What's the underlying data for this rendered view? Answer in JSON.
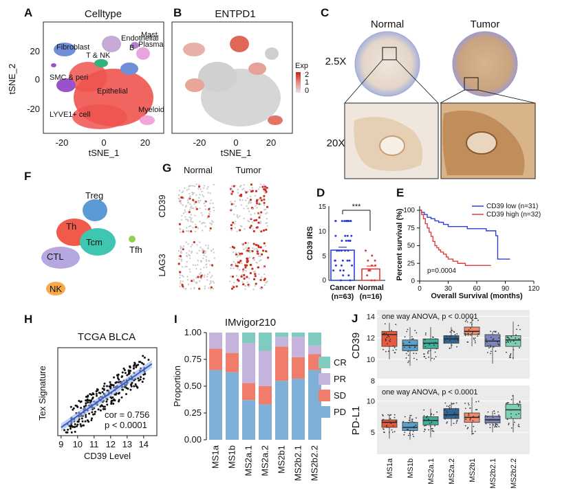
{
  "figure": {
    "panel_letters": {
      "A": "A",
      "B": "B",
      "C": "C",
      "F": "F",
      "G": "G",
      "D": "D",
      "E": "E",
      "H": "H",
      "I": "I",
      "J": "J"
    }
  },
  "panelA": {
    "title": "Celltype",
    "xlabel": "tSNE_1",
    "ylabel": "tSNE_2",
    "xticks": [
      "-20",
      "0",
      "20"
    ],
    "yticks": [
      "20",
      "0",
      "-20"
    ],
    "clusters": [
      {
        "label": "Endothelial",
        "color": "#c7a9d6"
      },
      {
        "label": "Mast",
        "color": "#c9c0ee"
      },
      {
        "label": "Fibroblast",
        "color": "#6f8fd8"
      },
      {
        "label": "B",
        "color": "#b37fd0"
      },
      {
        "label": "Plasma",
        "color": "#e7a4e0"
      },
      {
        "label": "T & NK",
        "color": "#34b27d"
      },
      {
        "label": "SMC & peri",
        "color": "#9a52c8"
      },
      {
        "label": "Epithelial",
        "color": "#f0544f"
      },
      {
        "label": "Myeloid",
        "color": "#f2a7d8"
      },
      {
        "label": "LYVE1+ cell",
        "color": "#9a52c8"
      }
    ]
  },
  "panelB": {
    "title": "ENTPD1",
    "xlabel": "tSNE_1",
    "xticks": [
      "-20",
      "0",
      "20"
    ],
    "legend_title": "Exp",
    "legend_values": [
      "2",
      "1",
      "0"
    ]
  },
  "panelC": {
    "col_labels": [
      "Normal",
      "Tumor"
    ],
    "row_labels": [
      "2.5X",
      "20X"
    ]
  },
  "panelF": {
    "clusters": [
      {
        "label": "Treg",
        "color": "#5b9bd5"
      },
      {
        "label": "Th",
        "color": "#f05a4a"
      },
      {
        "label": "Tcm",
        "color": "#3ec6b0"
      },
      {
        "label": "Tfh",
        "color": "#8fd14f"
      },
      {
        "label": "CTL",
        "color": "#b7a7e0"
      },
      {
        "label": "NK",
        "color": "#f7a94b"
      }
    ]
  },
  "panelG": {
    "col_labels": [
      "Normal",
      "Tumor"
    ],
    "row_labels": [
      "CD39",
      "LAG3"
    ]
  },
  "panelD": {
    "ylabel": "CD39 IRS",
    "yticks": [
      "15",
      "10",
      "5",
      "0"
    ],
    "groups": [
      "Cancer",
      "Normal"
    ],
    "group_n": [
      "(n=63)",
      "(n=16)"
    ],
    "sig": "***"
  },
  "panelE": {
    "ylabel": "Percent survival (%)",
    "xlabel": "Overall Survival (months)",
    "xticks": [
      "0",
      "30",
      "60",
      "90",
      "120"
    ],
    "yticks": [
      "100",
      "75",
      "50",
      "25",
      "0"
    ],
    "legend": [
      {
        "label": "CD39 low (n=31)",
        "color": "#2b3fd6"
      },
      {
        "label": "CD39 high (n=32)",
        "color": "#e23a3a"
      }
    ],
    "pvalue": "p=0.0004"
  },
  "panelH": {
    "title": "TCGA BLCA",
    "xlabel": "CD39 Level",
    "ylabel": "Tex Signature",
    "xticks": [
      "9",
      "10",
      "11",
      "12",
      "13",
      "14"
    ],
    "stat1": "cor = 0.756",
    "stat2": "p < 0.0001"
  },
  "panelI": {
    "title": "IMvigor210",
    "ylabel": "Proportion",
    "yticks": [
      "1.00",
      "0.75",
      "0.50",
      "0.25",
      "0.00"
    ],
    "legend": [
      {
        "label": "CR",
        "color": "#7fcbbf"
      },
      {
        "label": "PR",
        "color": "#c4b4dc"
      },
      {
        "label": "SD",
        "color": "#f07c6c"
      },
      {
        "label": "PD",
        "color": "#7fb1d8"
      }
    ]
  },
  "panelJ": {
    "top_ylabel": "CD39",
    "bottom_ylabel": "PD-L1",
    "annot": "one way ANOVA, p < 0.0001",
    "top_yticks": [
      "14",
      "12",
      "10",
      "8"
    ],
    "bottom_yticks": [
      "10",
      "5"
    ],
    "categories": [
      "MS1a",
      "MS1b",
      "MS2a.1",
      "MS2a.2",
      "MS2b1",
      "MS2b2.1",
      "MS2b2.2"
    ],
    "colors": [
      "#e8593c",
      "#5aa0c8",
      "#3fae9a",
      "#2f6597",
      "#f08a6a",
      "#7b86b8",
      "#7ccfb5"
    ]
  },
  "chart_data": [
    {
      "type": "bar",
      "panel": "D",
      "categories": [
        "Cancer",
        "Normal"
      ],
      "values": [
        6.1,
        2.3
      ],
      "ylabel": "CD39 IRS",
      "ylim": [
        0,
        15
      ]
    },
    {
      "type": "line",
      "panel": "E",
      "title": "",
      "xlabel": "Overall Survival (months)",
      "ylabel": "Percent survival (%)",
      "xlim": [
        0,
        120
      ],
      "ylim": [
        0,
        100
      ],
      "series": [
        {
          "name": "CD39 low (n=31)",
          "x": [
            0,
            2,
            5,
            8,
            12,
            16,
            20,
            25,
            30,
            40,
            50,
            60,
            70,
            80,
            82,
            95
          ],
          "y": [
            100,
            97,
            94,
            90,
            88,
            85,
            83,
            80,
            77,
            77,
            74,
            74,
            71,
            64,
            31,
            31
          ]
        },
        {
          "name": "CD39 high (n=32)",
          "x": [
            0,
            2,
            4,
            6,
            8,
            10,
            12,
            14,
            16,
            18,
            20,
            22,
            25,
            28,
            30,
            35,
            40,
            48,
            55,
            60,
            75
          ],
          "y": [
            100,
            94,
            88,
            81,
            75,
            69,
            63,
            56,
            50,
            47,
            44,
            41,
            38,
            34,
            31,
            28,
            25,
            22,
            22,
            22,
            22
          ]
        }
      ]
    },
    {
      "type": "scatter",
      "panel": "H",
      "title": "TCGA BLCA",
      "xlabel": "CD39 Level",
      "ylabel": "Tex Signature",
      "xlim": [
        8.8,
        14.8
      ],
      "ylim": [
        3.5,
        11.5
      ],
      "fit": {
        "slope": 1.05,
        "intercept": -5.2
      },
      "x": [
        9.2,
        9.5,
        9.8,
        10.0,
        10.1,
        10.2,
        10.3,
        10.4,
        10.5,
        10.6,
        10.7,
        10.8,
        10.9,
        11.0,
        11.0,
        11.1,
        11.2,
        11.3,
        11.4,
        11.5,
        11.5,
        11.6,
        11.7,
        11.8,
        11.9,
        12.0,
        12.0,
        12.1,
        12.2,
        12.3,
        12.4,
        12.5,
        12.6,
        12.7,
        12.8,
        12.9,
        13.0,
        13.1,
        13.2,
        13.4,
        13.6,
        13.8,
        14.0,
        14.3,
        10.0,
        10.6,
        11.2,
        11.8,
        12.4,
        13.0,
        11.4,
        12.2,
        10.8,
        12.8,
        11.6
      ],
      "y": [
        4.0,
        4.4,
        4.8,
        4.5,
        5.0,
        5.3,
        4.8,
        5.6,
        5.2,
        5.8,
        5.5,
        6.2,
        5.9,
        6.0,
        6.6,
        6.4,
        6.3,
        6.9,
        6.7,
        7.0,
        6.2,
        7.3,
        7.1,
        7.6,
        7.4,
        7.8,
        7.0,
        8.1,
        7.9,
        8.3,
        8.0,
        8.6,
        8.4,
        8.9,
        8.5,
        9.2,
        9.0,
        9.1,
        9.4,
        9.6,
        9.9,
        10.2,
        10.0,
        10.4,
        6.1,
        6.8,
        7.6,
        6.8,
        9.0,
        8.3,
        5.8,
        8.8,
        6.6,
        9.6,
        8.0
      ]
    },
    {
      "type": "bar",
      "panel": "I",
      "title": "IMvigor210",
      "ylabel": "Proportion",
      "ylim": [
        0,
        1
      ],
      "stacked": true,
      "categories": [
        "MS1a",
        "MS1b",
        "MS2a.1",
        "MS2a.2",
        "MS2b1",
        "MS2b2.1",
        "MS2b2.2"
      ],
      "series": [
        {
          "name": "PD",
          "values": [
            0.65,
            0.63,
            0.37,
            0.33,
            0.55,
            0.57,
            0.65
          ]
        },
        {
          "name": "SD",
          "values": [
            0.2,
            0.18,
            0.16,
            0.17,
            0.32,
            0.2,
            0.15
          ]
        },
        {
          "name": "PR",
          "values": [
            0.15,
            0.19,
            0.37,
            0.33,
            0.09,
            0.19,
            0.08
          ]
        },
        {
          "name": "CR",
          "values": [
            0.0,
            0.0,
            0.1,
            0.17,
            0.04,
            0.04,
            0.12
          ]
        }
      ]
    },
    {
      "type": "box",
      "panel": "J-top",
      "ylabel": "CD39",
      "ylim": [
        8.2,
        14.6
      ],
      "categories": [
        "MS1a",
        "MS1b",
        "MS2a.1",
        "MS2a.2",
        "MS2b1",
        "MS2b2.1",
        "MS2b2.2"
      ],
      "boxes": [
        {
          "min": 10.0,
          "q1": 11.2,
          "median": 12.3,
          "q3": 12.6,
          "max": 13.4
        },
        {
          "min": 9.4,
          "q1": 10.8,
          "median": 11.3,
          "q3": 11.8,
          "max": 13.0
        },
        {
          "min": 9.8,
          "q1": 11.0,
          "median": 11.5,
          "q3": 11.9,
          "max": 13.0
        },
        {
          "min": 11.0,
          "q1": 11.5,
          "median": 11.9,
          "q3": 12.2,
          "max": 13.0
        },
        {
          "min": 11.2,
          "q1": 12.3,
          "median": 12.6,
          "q3": 13.0,
          "max": 14.0
        },
        {
          "min": 9.6,
          "q1": 11.2,
          "median": 11.7,
          "q3": 12.3,
          "max": 12.6
        },
        {
          "min": 10.0,
          "q1": 11.2,
          "median": 11.8,
          "q3": 12.2,
          "max": 13.5
        }
      ]
    },
    {
      "type": "box",
      "panel": "J-bottom",
      "ylabel": "PD-L1",
      "ylim": [
        1.5,
        12.5
      ],
      "categories": [
        "MS1a",
        "MS1b",
        "MS2a.1",
        "MS2a.2",
        "MS2b1",
        "MS2b2.1",
        "MS2b2.2"
      ],
      "boxes": [
        {
          "min": 4.0,
          "q1": 5.8,
          "median": 6.6,
          "q3": 7.0,
          "max": 7.8
        },
        {
          "min": 3.8,
          "q1": 5.3,
          "median": 5.8,
          "q3": 6.6,
          "max": 7.8
        },
        {
          "min": 4.2,
          "q1": 6.2,
          "median": 6.9,
          "q3": 7.5,
          "max": 8.8
        },
        {
          "min": 6.0,
          "q1": 7.2,
          "median": 7.8,
          "q3": 8.8,
          "max": 9.8
        },
        {
          "min": 4.6,
          "q1": 6.6,
          "median": 7.4,
          "q3": 8.1,
          "max": 10.6
        },
        {
          "min": 5.0,
          "q1": 6.5,
          "median": 7.0,
          "q3": 7.6,
          "max": 8.4
        },
        {
          "min": 5.0,
          "q1": 7.2,
          "median": 8.6,
          "q3": 9.5,
          "max": 11.0
        }
      ]
    }
  ]
}
